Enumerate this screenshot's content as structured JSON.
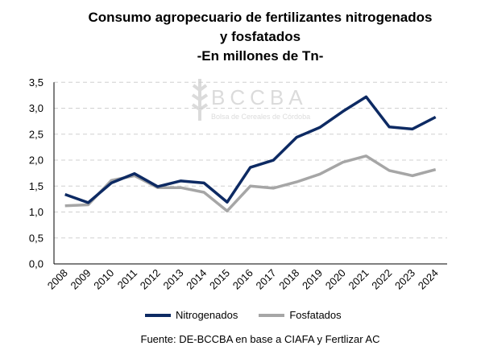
{
  "chart_data": {
    "type": "line",
    "title": [
      "Consumo agropecuario de fertilizantes nitrogenados",
      "y fosfatados",
      "-En millones de Tn-"
    ],
    "source": "Fuente: DE-BCCBA en base a CIAFA y Fertlizar AC",
    "watermark": {
      "logo": "BCCBA",
      "subtitle": "Bolsa de Cereales de Córdoba"
    },
    "categories": [
      "2008",
      "2009",
      "2010",
      "2011",
      "2012",
      "2013",
      "2014",
      "2015",
      "2016",
      "2017",
      "2018",
      "2019",
      "2020",
      "2021",
      "2022",
      "2023",
      "2024"
    ],
    "y_ticks": [
      "0,0",
      "0,5",
      "1,0",
      "1,5",
      "2,0",
      "2,5",
      "3,0",
      "3,5"
    ],
    "ylim": [
      0,
      3.5
    ],
    "grid": "horizontal dashed",
    "legend": "bottom",
    "series": [
      {
        "name": "Nitrogenados",
        "color": "#0d2a63",
        "values": [
          1.34,
          1.18,
          1.56,
          1.74,
          1.49,
          1.6,
          1.56,
          1.19,
          1.86,
          2.0,
          2.44,
          2.63,
          2.94,
          3.22,
          2.64,
          2.6,
          2.83
        ]
      },
      {
        "name": "Fosfatados",
        "color": "#a6a6a6",
        "values": [
          1.12,
          1.14,
          1.61,
          1.7,
          1.47,
          1.47,
          1.38,
          1.02,
          1.5,
          1.46,
          1.58,
          1.73,
          1.96,
          2.08,
          1.8,
          1.7,
          1.82
        ]
      }
    ]
  }
}
